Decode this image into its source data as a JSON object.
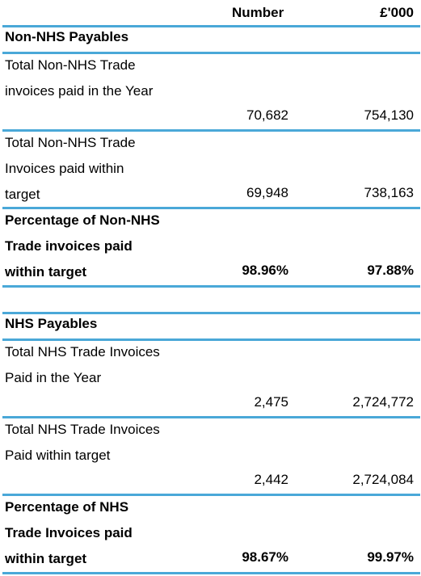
{
  "header": {
    "number": "Number",
    "value": "£'000"
  },
  "non_nhs": {
    "title": "Non-NHS Payables",
    "rows": [
      {
        "label": "Total Non-NHS Trade invoices paid in the Year",
        "number": "70,682",
        "value": "754,130"
      },
      {
        "label": "Total Non-NHS Trade Invoices paid within target",
        "number": "69,948",
        "value": "738,163"
      },
      {
        "label": "Percentage of Non-NHS Trade invoices paid within target",
        "number": "98.96%",
        "value": "97.88%"
      }
    ]
  },
  "nhs": {
    "title": "NHS Payables",
    "rows": [
      {
        "label": "Total NHS Trade Invoices Paid in the Year",
        "number": "2,475",
        "value": "2,724,772"
      },
      {
        "label": "Total NHS Trade Invoices Paid within target",
        "number": "2,442",
        "value": "2,724,084"
      },
      {
        "label": "Percentage of NHS Trade Invoices paid within target",
        "number": "98.67%",
        "value": "99.97%"
      }
    ]
  }
}
